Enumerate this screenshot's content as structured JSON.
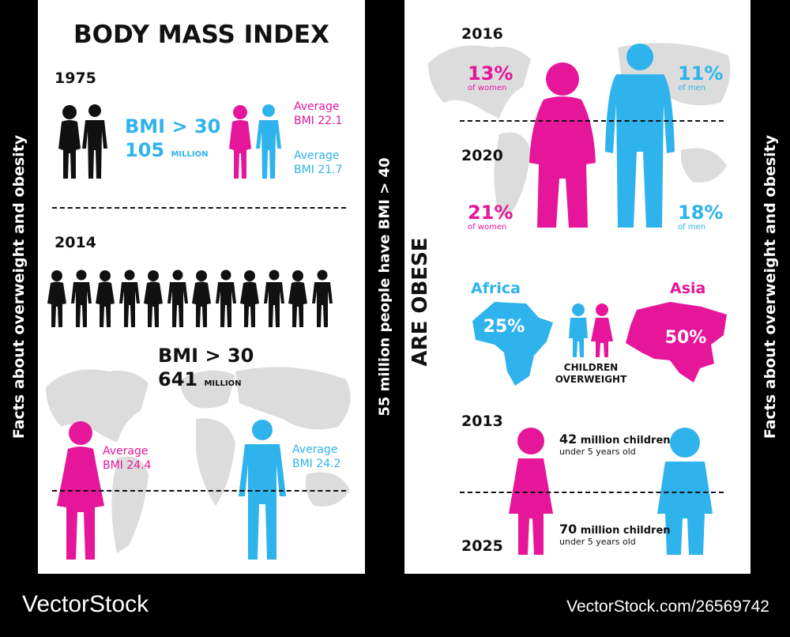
{
  "colors": {
    "pink": "#e5169a",
    "blue": "#2fb3ec",
    "dark": "#111111",
    "map": "#dcdcdc"
  },
  "left": {
    "title": "BODY MASS INDEX",
    "y1975": {
      "year": "1975",
      "bmi_label": "BMI > 30",
      "count": "105",
      "count_unit": "MILLION",
      "women_avg_label": "Average",
      "women_avg_value": "BMI 22.1",
      "men_avg_label": "Average",
      "men_avg_value": "BMI 21.7"
    },
    "y2014": {
      "year": "2014",
      "bmi_label": "BMI > 30",
      "count": "641",
      "count_unit": "MILLION",
      "women_avg_label": "Average",
      "women_avg_value": "BMI 24.4",
      "men_avg_label": "Average",
      "men_avg_value": "BMI 24.2"
    }
  },
  "side_text": {
    "left": "Facts about overweight and obesity",
    "middle": "55 million people have BMI > 40",
    "are_obese": "ARE OBESE",
    "right": "Facts about overweight and obesity"
  },
  "right": {
    "y2016": {
      "year": "2016",
      "women_pct": "13%",
      "women_label": "of women",
      "men_pct": "11%",
      "men_label": "of men"
    },
    "y2020": {
      "year": "2020",
      "women_pct": "21%",
      "women_label": "of women",
      "men_pct": "18%",
      "men_label": "of men"
    },
    "children": {
      "africa_label": "Africa",
      "africa_pct": "25%",
      "asia_label": "Asia",
      "asia_pct": "50%",
      "caption_line1": "CHILDREN",
      "caption_line2": "OVERWEIGHT"
    },
    "y2013": {
      "year": "2013",
      "count": "42",
      "count_text": "million children",
      "sub": "under 5 years old"
    },
    "y2025": {
      "year": "2025",
      "count": "70",
      "count_text": "million children",
      "sub": "under 5 years old"
    }
  },
  "footer": {
    "brand": "VectorStock",
    "id": "VectorStock.com/26569742"
  }
}
